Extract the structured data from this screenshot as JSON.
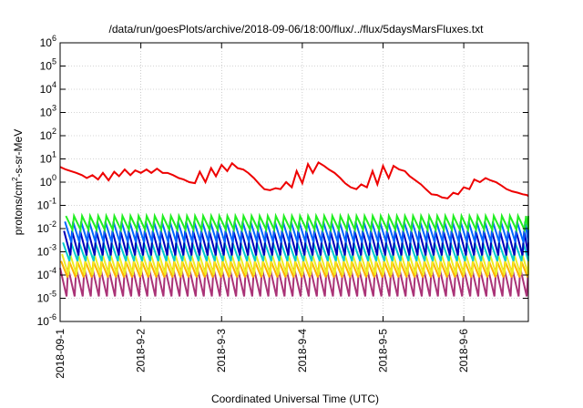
{
  "chart_data": {
    "type": "line",
    "title": "/data/run/goesPlots/archive/2018-09-06/18:00/flux/../flux/5daysMarsFluxes.txt",
    "xlabel": "Coordinated Universal Time (UTC)",
    "ylabel": "protons/cm²-s-sr-MeV",
    "yscale": "log",
    "ylim": [
      1e-06,
      1000000.0
    ],
    "xlim": [
      0,
      5.8
    ],
    "grid": true,
    "x_ticks": [
      {
        "value": 0,
        "label": "2018-09-1"
      },
      {
        "value": 1,
        "label": "2018-9-2"
      },
      {
        "value": 2,
        "label": "2018-9-3"
      },
      {
        "value": 3,
        "label": "2018-9-4"
      },
      {
        "value": 4,
        "label": "2018-9-5"
      },
      {
        "value": 5,
        "label": "2018-9-6"
      }
    ],
    "y_ticks": [
      {
        "value": -6,
        "base": "10",
        "exp": "-6"
      },
      {
        "value": -5,
        "base": "10",
        "exp": "-5"
      },
      {
        "value": -4,
        "base": "10",
        "exp": "-4"
      },
      {
        "value": -3,
        "base": "10",
        "exp": "-3"
      },
      {
        "value": -2,
        "base": "10",
        "exp": "-2"
      },
      {
        "value": -1,
        "base": "10",
        "exp": "-1"
      },
      {
        "value": 0,
        "base": "10",
        "exp": "0"
      },
      {
        "value": 1,
        "base": "10",
        "exp": "1"
      },
      {
        "value": 2,
        "base": "10",
        "exp": "2"
      },
      {
        "value": 3,
        "base": "10",
        "exp": "3"
      },
      {
        "value": 4,
        "base": "10",
        "exp": "4"
      },
      {
        "value": 5,
        "base": "10",
        "exp": "5"
      },
      {
        "value": 6,
        "base": "10",
        "exp": "6"
      }
    ],
    "series": [
      {
        "color": "#ee0000",
        "x": [
          0.0,
          0.07,
          0.13,
          0.2,
          0.27,
          0.33,
          0.4,
          0.47,
          0.53,
          0.6,
          0.67,
          0.73,
          0.8,
          0.87,
          0.93,
          1.0,
          1.07,
          1.13,
          1.2,
          1.27,
          1.33,
          1.4,
          1.47,
          1.53,
          1.6,
          1.67,
          1.73,
          1.8,
          1.87,
          1.93,
          2.0,
          2.07,
          2.13,
          2.2,
          2.27,
          2.33,
          2.4,
          2.47,
          2.53,
          2.6,
          2.67,
          2.73,
          2.8,
          2.87,
          2.93,
          3.0,
          3.07,
          3.13,
          3.2,
          3.27,
          3.33,
          3.4,
          3.47,
          3.53,
          3.6,
          3.67,
          3.73,
          3.8,
          3.87,
          3.93,
          4.0,
          4.07,
          4.13,
          4.2,
          4.27,
          4.33,
          4.4,
          4.47,
          4.53,
          4.6,
          4.67,
          4.73,
          4.8,
          4.87,
          4.93,
          5.0,
          5.07,
          5.13,
          5.2,
          5.27,
          5.33,
          5.4,
          5.47,
          5.53,
          5.6,
          5.67,
          5.73,
          5.78,
          5.8
        ],
        "y": [
          4.5,
          3.5,
          3.0,
          2.5,
          2.0,
          1.5,
          2.0,
          1.3,
          2.5,
          1.2,
          2.8,
          1.8,
          3.5,
          2.0,
          3.2,
          2.5,
          3.5,
          2.5,
          3.8,
          2.5,
          2.5,
          2.0,
          1.5,
          1.3,
          1.0,
          0.9,
          2.8,
          1.0,
          4.0,
          1.8,
          5.5,
          3.0,
          6.5,
          4.0,
          3.5,
          2.5,
          1.5,
          0.8,
          0.5,
          0.45,
          0.55,
          0.5,
          1.0,
          0.6,
          3.0,
          0.9,
          6.0,
          2.5,
          7.0,
          5.0,
          3.5,
          2.5,
          1.5,
          0.9,
          0.6,
          0.5,
          0.8,
          0.6,
          3.0,
          0.8,
          5.0,
          1.5,
          5.0,
          3.5,
          3.0,
          1.8,
          1.2,
          0.8,
          0.5,
          0.3,
          0.28,
          0.22,
          0.2,
          0.35,
          0.3,
          0.6,
          0.5,
          1.3,
          1.0,
          1.5,
          1.2,
          1.0,
          0.7,
          0.5,
          0.4,
          0.35,
          0.3,
          0.28,
          0.25
        ]
      }
    ],
    "spike_series": [
      {
        "color": "#22ee22",
        "low": 0.009,
        "high": 0.035
      },
      {
        "color": "#0066ff",
        "low": 0.0025,
        "high": 0.02
      },
      {
        "color": "#0000bb",
        "low": 0.0007,
        "high": 0.008
      },
      {
        "color": "#00cccc",
        "low": 0.0004,
        "high": 0.0025
      },
      {
        "color": "#eeee22",
        "low": 0.0001,
        "high": 0.0008
      },
      {
        "color": "#ffb000",
        "low": 8e-05,
        "high": 0.0004
      },
      {
        "color": "#aa3377",
        "low": 1.2e-05,
        "high": 0.0002
      }
    ],
    "spike_period_days": 0.1,
    "spike_count": 58
  }
}
